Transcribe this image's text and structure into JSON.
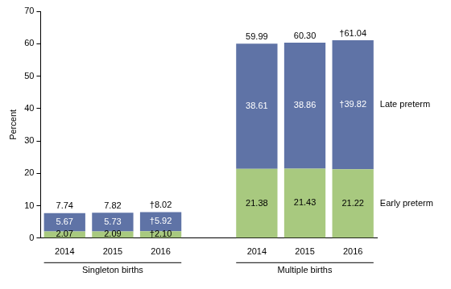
{
  "chart_data": {
    "type": "bar",
    "stacked": true,
    "data_labels": true,
    "grid": false,
    "y_label": "Percent",
    "categories": [
      "2014",
      "2015",
      "2016",
      "2014",
      "2015",
      "2016"
    ],
    "groups": [
      {
        "name": "Singleton births",
        "categories": [
          "2014",
          "2015",
          "2016"
        ]
      },
      {
        "name": "Multiple births",
        "categories": [
          "2014",
          "2015",
          "2016"
        ]
      }
    ],
    "series": [
      {
        "name": "Early preterm",
        "color": "#a8c97f",
        "values": [
          2.07,
          2.09,
          2.1,
          21.38,
          21.43,
          21.22
        ],
        "value_labels": [
          "2.07",
          "2.09",
          "†2.10",
          "21.38",
          "21.43",
          "21.22"
        ]
      },
      {
        "name": "Late preterm",
        "color": "#5f73a6",
        "values": [
          5.67,
          5.73,
          5.92,
          38.61,
          38.86,
          39.82
        ],
        "value_labels": [
          "5.67",
          "5.73",
          "†5.92",
          "38.61",
          "38.86",
          "†39.82"
        ]
      }
    ],
    "totals": [
      7.74,
      7.82,
      8.02,
      59.99,
      60.3,
      61.04
    ],
    "total_labels": [
      "7.74",
      "7.82",
      "†8.02",
      "59.99",
      "60.30",
      "†61.04"
    ],
    "ylim": [
      0,
      70
    ],
    "yticks": [
      0,
      10,
      20,
      30,
      40,
      50,
      60,
      70
    ]
  }
}
